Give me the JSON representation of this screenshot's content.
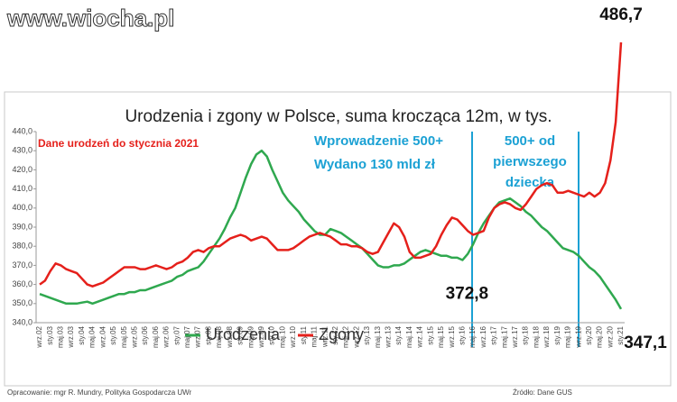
{
  "watermark": "www.wiocha.pl",
  "chart_data": {
    "type": "line",
    "title": "Urodzenia i zgony w Polsce, suma krocząca 12m, w tys.",
    "note": "Dane urodzeń do stycznia 2021",
    "annotations": [
      [
        "Wprowadzenie 500+",
        "Wydano 130 mld zł"
      ],
      [
        "500+ od",
        "pierwszego",
        "dziecka"
      ]
    ],
    "categories": [
      "wrz.02",
      null,
      "sty.03",
      null,
      "maj.03",
      null,
      "wrz.03",
      null,
      "sty.04",
      null,
      "maj.04",
      null,
      "wrz.04",
      null,
      "sty.05",
      null,
      "maj.05",
      null,
      "wrz.05",
      null,
      "sty.06",
      null,
      "maj.06",
      null,
      "wrz.06",
      null,
      "sty.07",
      null,
      "maj.07",
      null,
      "wrz.07",
      null,
      "sty.08",
      null,
      "maj.08",
      null,
      "wrz.08",
      null,
      "sty.09",
      null,
      "maj.09",
      null,
      "wrz.09",
      null,
      "sty.10",
      null,
      "maj.10",
      null,
      "wrz.10",
      null,
      "sty.11",
      null,
      "maj.11",
      null,
      "wrz.11",
      null,
      "sty.12",
      null,
      "maj.12",
      null,
      "wrz.12",
      null,
      "sty.13",
      null,
      "maj.13",
      null,
      "wrz.13",
      null,
      "sty.14",
      null,
      "maj.14",
      null,
      "wrz.14",
      null,
      "sty.15",
      null,
      "maj.15",
      null,
      "wrz.15",
      null,
      "sty.16",
      null,
      "maj.16",
      null,
      "wrz.16",
      null,
      "sty.17",
      null,
      "maj.17",
      null,
      "wrz.17",
      null,
      "sty.18",
      null,
      "maj.18",
      null,
      "wrz.18",
      null,
      "sty.19",
      null,
      "maj.19",
      null,
      "wrz.19",
      null,
      "sty.20",
      null,
      "maj.20",
      null,
      "wrz.20",
      null,
      "sty.21"
    ],
    "series": [
      {
        "name": "Urodzenia",
        "color": "#2fa84f",
        "values": [
          355,
          354,
          353,
          352,
          351,
          350,
          350,
          350,
          350.5,
          351,
          350,
          351,
          352,
          353,
          354,
          355,
          355,
          356,
          356,
          357,
          357,
          358,
          359,
          360,
          361,
          362,
          364,
          365,
          367,
          368,
          369,
          372,
          376,
          380,
          384,
          389,
          395,
          400,
          408,
          416,
          423,
          428,
          430,
          427,
          420,
          414,
          408,
          404,
          401,
          398,
          394,
          391,
          388,
          386,
          386,
          389,
          388,
          387,
          385,
          383,
          381,
          379,
          376,
          373,
          370,
          369,
          369,
          370,
          370,
          371,
          373,
          375,
          377,
          378,
          377,
          376,
          375,
          375,
          374,
          374,
          372.8,
          376,
          381,
          387,
          392,
          396,
          400,
          403,
          404,
          405,
          403,
          401,
          398,
          396,
          393,
          390,
          388,
          385,
          382,
          379,
          378,
          377,
          375,
          372,
          369,
          367,
          364,
          360,
          356,
          352,
          347.1
        ],
        "value_labels": [
          null,
          null,
          null,
          null,
          null,
          null,
          null,
          null,
          null,
          null,
          null,
          null,
          null,
          null,
          null,
          null,
          null,
          null,
          null,
          null,
          null,
          null,
          null,
          null,
          null,
          null,
          null,
          null,
          null,
          null,
          null,
          null,
          null,
          null,
          null,
          null,
          null,
          null,
          null,
          null,
          null,
          null,
          null,
          null,
          null,
          null,
          null,
          null,
          null,
          null,
          null,
          null,
          null,
          null,
          null,
          null,
          null,
          null,
          null,
          null,
          null,
          null,
          null,
          null,
          null,
          null,
          null,
          null,
          null,
          null,
          null,
          null,
          null,
          null,
          null,
          null,
          null,
          null,
          null,
          null,
          "372,8",
          null,
          null,
          null,
          null,
          null,
          null,
          null,
          null,
          null,
          null,
          null,
          null,
          null,
          null,
          null,
          null,
          null,
          null,
          null,
          null,
          null,
          null,
          null,
          null,
          null,
          null,
          null,
          null,
          null,
          "347,1"
        ]
      },
      {
        "name": "Zgony",
        "color": "#e5201b",
        "values": [
          360,
          362,
          367,
          371,
          370,
          368,
          367,
          366,
          363,
          360,
          359,
          360,
          361,
          363,
          365,
          367,
          369,
          369,
          369,
          368,
          368,
          369,
          370,
          369,
          368,
          369,
          371,
          372,
          374,
          377,
          378,
          377,
          379,
          380,
          380,
          382,
          384,
          385,
          386,
          385,
          383,
          384,
          385,
          384,
          381,
          378,
          378,
          378,
          379,
          381,
          383,
          385,
          386,
          387,
          386,
          385,
          383,
          381,
          381,
          380,
          380,
          379,
          377,
          376,
          377,
          382,
          387,
          392,
          390,
          385,
          377,
          374,
          374,
          375,
          376,
          380,
          386,
          391,
          395,
          394,
          391,
          388,
          386,
          387,
          388,
          395,
          400,
          402,
          403,
          402,
          400,
          399,
          402,
          406,
          410,
          412,
          413,
          412,
          408,
          408,
          409,
          408,
          407,
          406,
          408,
          406,
          408,
          413,
          425,
          445,
          486.7
        ],
        "value_labels": [
          null,
          null,
          null,
          null,
          null,
          null,
          null,
          null,
          null,
          null,
          null,
          null,
          null,
          null,
          null,
          null,
          null,
          null,
          null,
          null,
          null,
          null,
          null,
          null,
          null,
          null,
          null,
          null,
          null,
          null,
          null,
          null,
          null,
          null,
          null,
          null,
          null,
          null,
          null,
          null,
          null,
          null,
          null,
          null,
          null,
          null,
          null,
          null,
          null,
          null,
          null,
          null,
          null,
          null,
          null,
          null,
          null,
          null,
          null,
          null,
          null,
          null,
          null,
          null,
          null,
          null,
          null,
          null,
          null,
          null,
          null,
          null,
          null,
          null,
          null,
          null,
          null,
          null,
          null,
          null,
          null,
          null,
          null,
          null,
          null,
          null,
          null,
          null,
          null,
          null,
          null,
          null,
          null,
          null,
          null,
          null,
          null,
          null,
          null,
          null,
          null,
          null,
          null,
          null,
          null,
          null,
          null,
          null,
          null,
          null,
          "486,7"
        ]
      }
    ],
    "ylim": [
      340,
      440
    ],
    "yticks": [
      {
        "value": 340,
        "label": "340,0"
      },
      {
        "value": 350,
        "label": "350,0"
      },
      {
        "value": 360,
        "label": "360,0"
      },
      {
        "value": 370,
        "label": "370,0"
      },
      {
        "value": 380,
        "label": "380,0"
      },
      {
        "value": 390,
        "label": "390,0"
      },
      {
        "value": 400,
        "label": "400,0"
      },
      {
        "value": 410,
        "label": "410,0"
      },
      {
        "value": 420,
        "label": "420,0"
      },
      {
        "value": 430,
        "label": "430,0"
      },
      {
        "value": 440,
        "label": "440,0"
      }
    ],
    "grid": false
  },
  "footer": {
    "author": "Opracowanie: mgr R. Mundry, Polityka Gospodarcza UWr",
    "source": "Źródło: Dane GUS"
  }
}
